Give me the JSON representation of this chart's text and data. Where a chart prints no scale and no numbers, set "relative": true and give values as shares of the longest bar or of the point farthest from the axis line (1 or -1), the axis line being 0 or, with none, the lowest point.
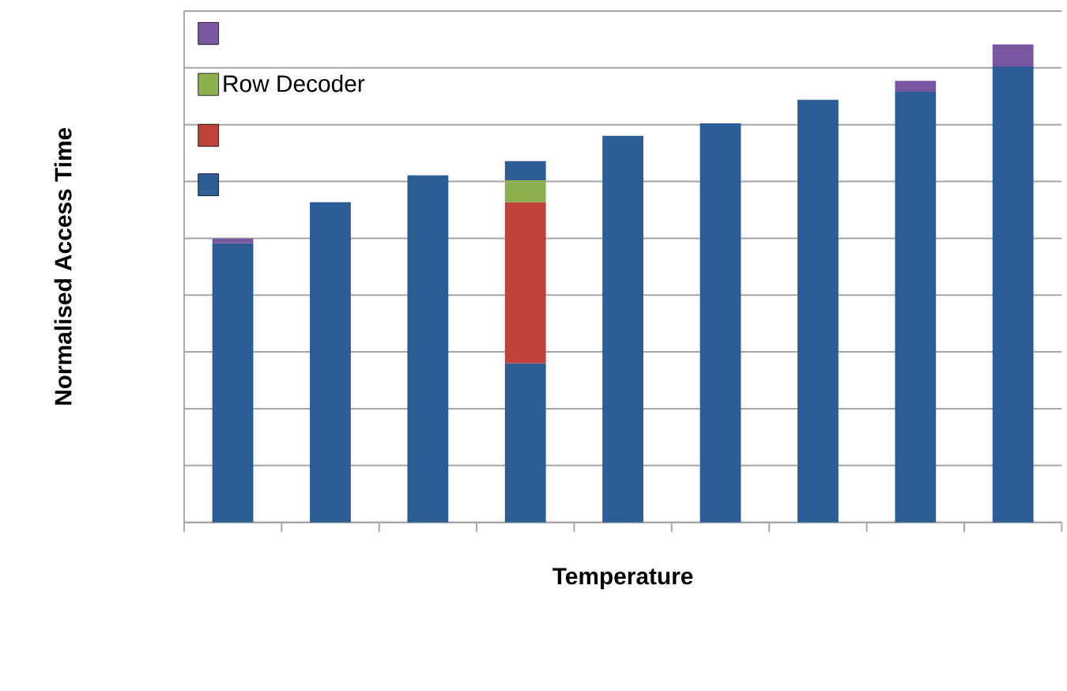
{
  "chart_data": {
    "type": "bar",
    "stacked": true,
    "relative": true,
    "xlabel": "Temperature",
    "ylabel": "Normalised Access Time",
    "categories": [
      null,
      null,
      null,
      null,
      null,
      null,
      null,
      null,
      null
    ],
    "series": [
      {
        "color": "#2c5d94",
        "values": [
          0.584,
          0.67,
          0.726,
          0.333,
          0.809,
          0.835,
          0.884,
          0.901,
          0.954
        ]
      },
      {
        "color": "#c0403a",
        "values": [
          null,
          null,
          null,
          0.337,
          null,
          null,
          null,
          null,
          null
        ]
      },
      {
        "name": "Row Decoder",
        "color": "#8db04e",
        "values": [
          null,
          null,
          null,
          0.046,
          null,
          null,
          null,
          null,
          null
        ]
      },
      {
        "color": "#7a57a0",
        "colors": [
          "#7a57a0",
          null,
          null,
          "#2c5d94",
          null,
          null,
          null,
          "#7a57a0",
          "#7a57a0"
        ],
        "values": [
          0.01,
          null,
          null,
          0.04,
          null,
          null,
          null,
          0.023,
          0.046
        ]
      }
    ],
    "grid": "y",
    "legend": "top left"
  }
}
